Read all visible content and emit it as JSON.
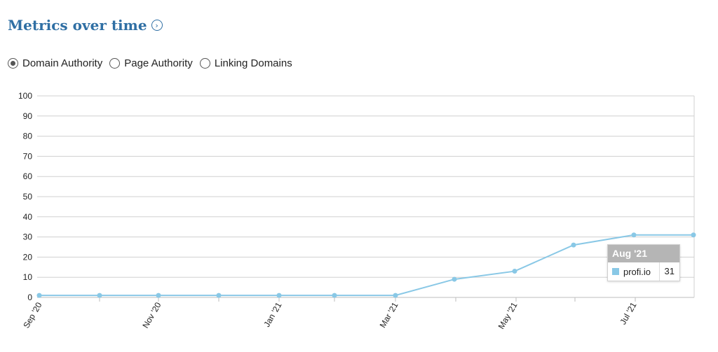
{
  "header": {
    "title": "Metrics over time",
    "info_icon": "chevron-right-circle-icon"
  },
  "metric_options": [
    {
      "label": "Domain Authority",
      "selected": true
    },
    {
      "label": "Page Authority",
      "selected": false
    },
    {
      "label": "Linking Domains",
      "selected": false
    }
  ],
  "tooltip": {
    "title": "Aug '21",
    "series_name": "profi.io",
    "value": "31"
  },
  "colors": {
    "accent": "#2f6fa4",
    "series": "#89c8e6",
    "grid": "#d0d0d0"
  },
  "chart_data": {
    "type": "line",
    "title": "",
    "xlabel": "",
    "ylabel": "",
    "ylim": [
      0,
      100
    ],
    "yticks": [
      0,
      10,
      20,
      30,
      40,
      50,
      60,
      70,
      80,
      90,
      100
    ],
    "x_tick_labels": [
      "Sep '20",
      "Nov '20",
      "Jan '21",
      "Mar '21",
      "May '21",
      "Jul '21"
    ],
    "categories": [
      "Sep '20",
      "Oct '20",
      "Nov '20",
      "Dec '20",
      "Jan '21",
      "Feb '21",
      "Mar '21",
      "Apr '21",
      "May '21",
      "Jun '21",
      "Jul '21",
      "Aug '21"
    ],
    "series": [
      {
        "name": "profi.io",
        "values": [
          1,
          1,
          1,
          1,
          1,
          1,
          1,
          9,
          13,
          26,
          31,
          31
        ]
      }
    ],
    "grid": true
  }
}
